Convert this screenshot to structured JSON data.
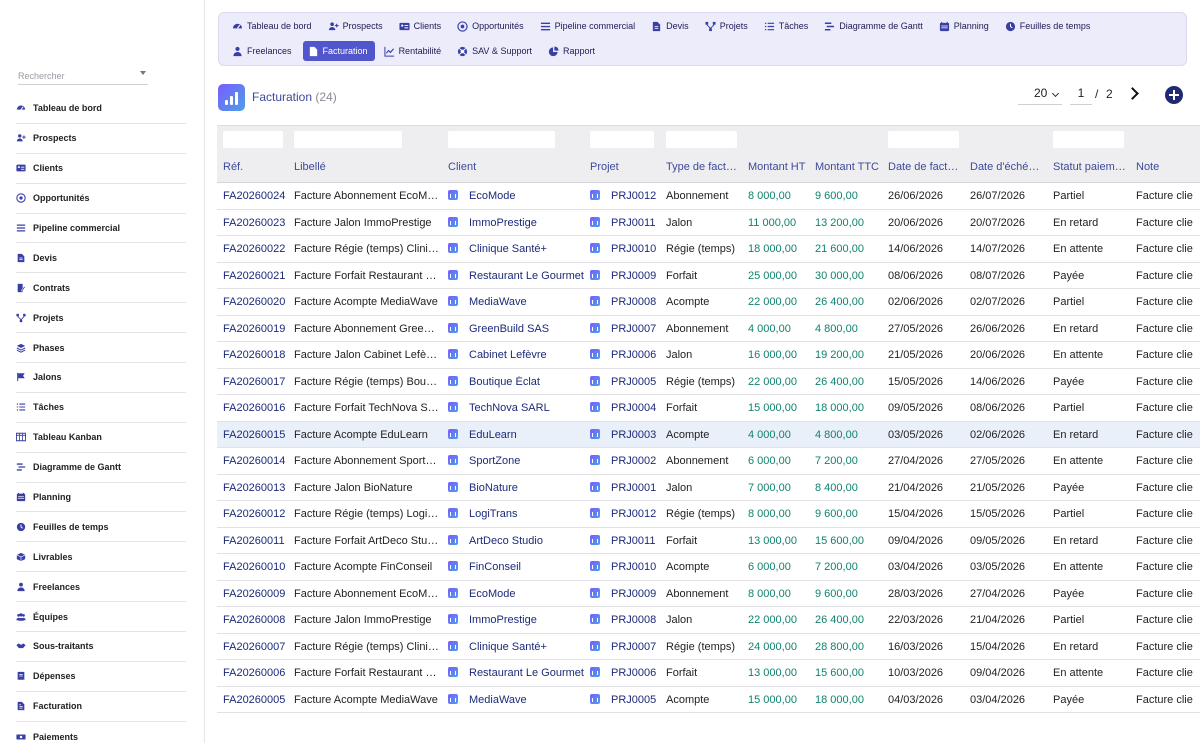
{
  "sidebar": {
    "search_placeholder": "Rechercher",
    "items": [
      {
        "label": "Tableau de bord",
        "icon": "dashboard-icon"
      },
      {
        "label": "Prospects",
        "icon": "user-plus-icon"
      },
      {
        "label": "Clients",
        "icon": "id-card-icon"
      },
      {
        "label": "Opportunités",
        "icon": "target-icon"
      },
      {
        "label": "Pipeline commercial",
        "icon": "bars-icon"
      },
      {
        "label": "Devis",
        "icon": "document-icon"
      },
      {
        "label": "Contrats",
        "icon": "contract-icon"
      },
      {
        "label": "Projets",
        "icon": "project-nodes-icon"
      },
      {
        "label": "Phases",
        "icon": "layers-icon"
      },
      {
        "label": "Jalons",
        "icon": "flag-icon"
      },
      {
        "label": "Tâches",
        "icon": "task-list-icon"
      },
      {
        "label": "Tableau Kanban",
        "icon": "kanban-icon"
      },
      {
        "label": "Diagramme de Gantt",
        "icon": "gantt-icon"
      },
      {
        "label": "Planning",
        "icon": "calendar-icon"
      },
      {
        "label": "Feuilles de temps",
        "icon": "clock-icon"
      },
      {
        "label": "Livrables",
        "icon": "box-icon"
      },
      {
        "label": "Freelances",
        "icon": "person-icon"
      },
      {
        "label": "Équipes",
        "icon": "team-icon"
      },
      {
        "label": "Sous-traitants",
        "icon": "handshake-icon"
      },
      {
        "label": "Dépenses",
        "icon": "receipt-icon"
      },
      {
        "label": "Facturation",
        "icon": "invoice-icon"
      },
      {
        "label": "Paiements",
        "icon": "money-icon"
      }
    ]
  },
  "topnav": {
    "row1": [
      {
        "label": "Tableau de bord",
        "icon": "dashboard-icon"
      },
      {
        "label": "Prospects",
        "icon": "user-plus-icon"
      },
      {
        "label": "Clients",
        "icon": "id-card-icon"
      },
      {
        "label": "Opportunités",
        "icon": "target-icon"
      },
      {
        "label": "Pipeline commercial",
        "icon": "bars-icon"
      },
      {
        "label": "Devis",
        "icon": "document-icon"
      },
      {
        "label": "Projets",
        "icon": "project-nodes-icon"
      },
      {
        "label": "Tâches",
        "icon": "task-list-icon"
      },
      {
        "label": "Diagramme de Gantt",
        "icon": "gantt-icon"
      },
      {
        "label": "Planning",
        "icon": "calendar-icon"
      },
      {
        "label": "Feuilles de temps",
        "icon": "clock-icon"
      }
    ],
    "row2": [
      {
        "label": "Freelances",
        "icon": "person-icon"
      },
      {
        "label": "Facturation",
        "icon": "invoice-icon",
        "active": true
      },
      {
        "label": "Rentabilité",
        "icon": "chart-line-icon"
      },
      {
        "label": "SAV & Support",
        "icon": "support-icon"
      },
      {
        "label": "Rapport",
        "icon": "pie-chart-icon"
      }
    ]
  },
  "header": {
    "title": "Facturation",
    "count": "(24)",
    "per_page": "20",
    "page": "1",
    "page_sep": "/",
    "total_pages": "2"
  },
  "table": {
    "columns": [
      "Réf.",
      "Libellé",
      "Client",
      "Projet",
      "Type de fact…",
      "Montant HT",
      "Montant TTC",
      "Date de fact…",
      "Date d'éché…",
      "Statut paiem…",
      "Note"
    ],
    "rows": [
      {
        "ref": "FA20260024",
        "libelle": "Facture Abonnement EcoM…",
        "client": "EcoMode",
        "projet": "PRJ0012",
        "type": "Abonnement",
        "ht": "8 000,00",
        "ttc": "9 600,00",
        "date_fact": "26/06/2026",
        "date_ech": "26/07/2026",
        "statut": "Partiel",
        "note": "Facture clie"
      },
      {
        "ref": "FA20260023",
        "libelle": "Facture Jalon ImmoPrestige",
        "client": "ImmoPrestige",
        "projet": "PRJ0011",
        "type": "Jalon",
        "ht": "11 000,00",
        "ttc": "13 200,00",
        "date_fact": "20/06/2026",
        "date_ech": "20/07/2026",
        "statut": "En retard",
        "note": "Facture clie"
      },
      {
        "ref": "FA20260022",
        "libelle": "Facture Régie (temps) Clini…",
        "client": "Clinique Santé+",
        "projet": "PRJ0010",
        "type": "Régie (temps)",
        "ht": "18 000,00",
        "ttc": "21 600,00",
        "date_fact": "14/06/2026",
        "date_ech": "14/07/2026",
        "statut": "En attente",
        "note": "Facture clie"
      },
      {
        "ref": "FA20260021",
        "libelle": "Facture Forfait Restaurant L…",
        "client": "Restaurant Le Gourmet",
        "projet": "PRJ0009",
        "type": "Forfait",
        "ht": "25 000,00",
        "ttc": "30 000,00",
        "date_fact": "08/06/2026",
        "date_ech": "08/07/2026",
        "statut": "Payée",
        "note": "Facture clie"
      },
      {
        "ref": "FA20260020",
        "libelle": "Facture Acompte MediaWave",
        "client": "MediaWave",
        "projet": "PRJ0008",
        "type": "Acompte",
        "ht": "22 000,00",
        "ttc": "26 400,00",
        "date_fact": "02/06/2026",
        "date_ech": "02/07/2026",
        "statut": "Partiel",
        "note": "Facture clie"
      },
      {
        "ref": "FA20260019",
        "libelle": "Facture Abonnement Green…",
        "client": "GreenBuild SAS",
        "projet": "PRJ0007",
        "type": "Abonnement",
        "ht": "4 000,00",
        "ttc": "4 800,00",
        "date_fact": "27/05/2026",
        "date_ech": "26/06/2026",
        "statut": "En retard",
        "note": "Facture clie"
      },
      {
        "ref": "FA20260018",
        "libelle": "Facture Jalon Cabinet Lefèvre",
        "client": "Cabinet Lefèvre",
        "projet": "PRJ0006",
        "type": "Jalon",
        "ht": "16 000,00",
        "ttc": "19 200,00",
        "date_fact": "21/05/2026",
        "date_ech": "20/06/2026",
        "statut": "En attente",
        "note": "Facture clie"
      },
      {
        "ref": "FA20260017",
        "libelle": "Facture Régie (temps) Bouti…",
        "client": "Boutique Éclat",
        "projet": "PRJ0005",
        "type": "Régie (temps)",
        "ht": "22 000,00",
        "ttc": "26 400,00",
        "date_fact": "15/05/2026",
        "date_ech": "14/06/2026",
        "statut": "Payée",
        "note": "Facture clie"
      },
      {
        "ref": "FA20260016",
        "libelle": "Facture Forfait TechNova S…",
        "client": "TechNova SARL",
        "projet": "PRJ0004",
        "type": "Forfait",
        "ht": "15 000,00",
        "ttc": "18 000,00",
        "date_fact": "09/05/2026",
        "date_ech": "08/06/2026",
        "statut": "Partiel",
        "note": "Facture clie"
      },
      {
        "ref": "FA20260015",
        "libelle": "Facture Acompte EduLearn",
        "client": "EduLearn",
        "projet": "PRJ0003",
        "type": "Acompte",
        "ht": "4 000,00",
        "ttc": "4 800,00",
        "date_fact": "03/05/2026",
        "date_ech": "02/06/2026",
        "statut": "En retard",
        "note": "Facture clie",
        "highlight": true
      },
      {
        "ref": "FA20260014",
        "libelle": "Facture Abonnement SportZ…",
        "client": "SportZone",
        "projet": "PRJ0002",
        "type": "Abonnement",
        "ht": "6 000,00",
        "ttc": "7 200,00",
        "date_fact": "27/04/2026",
        "date_ech": "27/05/2026",
        "statut": "En attente",
        "note": "Facture clie"
      },
      {
        "ref": "FA20260013",
        "libelle": "Facture Jalon BioNature",
        "client": "BioNature",
        "projet": "PRJ0001",
        "type": "Jalon",
        "ht": "7 000,00",
        "ttc": "8 400,00",
        "date_fact": "21/04/2026",
        "date_ech": "21/05/2026",
        "statut": "Payée",
        "note": "Facture clie"
      },
      {
        "ref": "FA20260012",
        "libelle": "Facture Régie (temps) Logi…",
        "client": "LogiTrans",
        "projet": "PRJ0012",
        "type": "Régie (temps)",
        "ht": "8 000,00",
        "ttc": "9 600,00",
        "date_fact": "15/04/2026",
        "date_ech": "15/05/2026",
        "statut": "Partiel",
        "note": "Facture clie"
      },
      {
        "ref": "FA20260011",
        "libelle": "Facture Forfait ArtDeco Studio",
        "client": "ArtDeco Studio",
        "projet": "PRJ0011",
        "type": "Forfait",
        "ht": "13 000,00",
        "ttc": "15 600,00",
        "date_fact": "09/04/2026",
        "date_ech": "09/05/2026",
        "statut": "En retard",
        "note": "Facture clie"
      },
      {
        "ref": "FA20260010",
        "libelle": "Facture Acompte FinConseil",
        "client": "FinConseil",
        "projet": "PRJ0010",
        "type": "Acompte",
        "ht": "6 000,00",
        "ttc": "7 200,00",
        "date_fact": "03/04/2026",
        "date_ech": "03/05/2026",
        "statut": "En attente",
        "note": "Facture clie"
      },
      {
        "ref": "FA20260009",
        "libelle": "Facture Abonnement EcoM…",
        "client": "EcoMode",
        "projet": "PRJ0009",
        "type": "Abonnement",
        "ht": "8 000,00",
        "ttc": "9 600,00",
        "date_fact": "28/03/2026",
        "date_ech": "27/04/2026",
        "statut": "Payée",
        "note": "Facture clie"
      },
      {
        "ref": "FA20260008",
        "libelle": "Facture Jalon ImmoPrestige",
        "client": "ImmoPrestige",
        "projet": "PRJ0008",
        "type": "Jalon",
        "ht": "22 000,00",
        "ttc": "26 400,00",
        "date_fact": "22/03/2026",
        "date_ech": "21/04/2026",
        "statut": "Partiel",
        "note": "Facture clie"
      },
      {
        "ref": "FA20260007",
        "libelle": "Facture Régie (temps) Clini…",
        "client": "Clinique Santé+",
        "projet": "PRJ0007",
        "type": "Régie (temps)",
        "ht": "24 000,00",
        "ttc": "28 800,00",
        "date_fact": "16/03/2026",
        "date_ech": "15/04/2026",
        "statut": "En retard",
        "note": "Facture clie"
      },
      {
        "ref": "FA20260006",
        "libelle": "Facture Forfait Restaurant L…",
        "client": "Restaurant Le Gourmet",
        "projet": "PRJ0006",
        "type": "Forfait",
        "ht": "13 000,00",
        "ttc": "15 600,00",
        "date_fact": "10/03/2026",
        "date_ech": "09/04/2026",
        "statut": "En attente",
        "note": "Facture clie"
      },
      {
        "ref": "FA20260005",
        "libelle": "Facture Acompte MediaWave",
        "client": "MediaWave",
        "projet": "PRJ0005",
        "type": "Acompte",
        "ht": "15 000,00",
        "ttc": "18 000,00",
        "date_fact": "04/03/2026",
        "date_ech": "03/04/2026",
        "statut": "Payée",
        "note": "Facture clie"
      }
    ]
  },
  "colors": {
    "accent": "#5156cc",
    "link": "#1c2a7a",
    "amount": "#10826f",
    "nav_bg": "#ececfa"
  }
}
